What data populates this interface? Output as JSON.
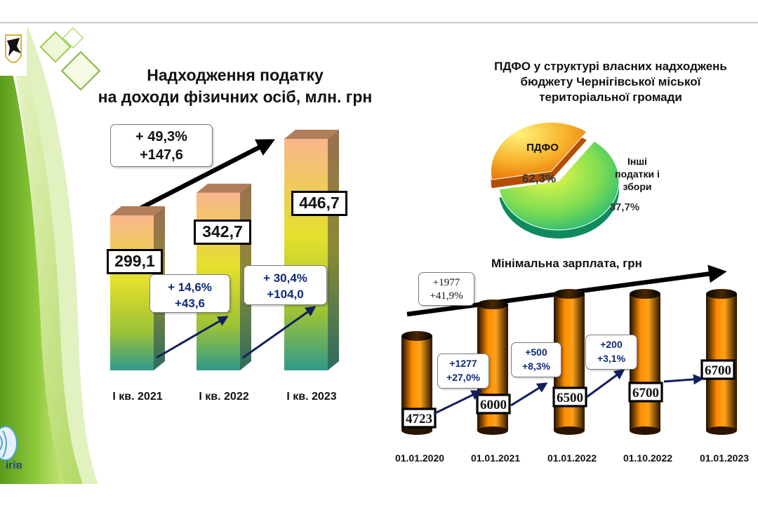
{
  "income_tax_chart": {
    "title_line1": "Надходження податку",
    "title_line2": "на доходи фізичних осіб, млн. грн",
    "total_growth": {
      "percent": "+ 49,3%",
      "amount": "+147,6"
    },
    "quarter_growth": [
      {
        "percent": "+ 14,6%",
        "amount": "+43,6"
      },
      {
        "percent": "+ 30,4%",
        "amount": "+104,0"
      }
    ],
    "value_labels": [
      "299,1",
      "342,7",
      "446,7"
    ]
  },
  "pie_chart": {
    "title_line1": "ПДФО у структурі власних надходжень",
    "title_line2": "бюджету Чернігівської міської",
    "title_line3": "територіальної громади",
    "slice_pdfo": {
      "label": "ПДФО",
      "percent": "62,3%"
    },
    "slice_other": {
      "label_line1": "Інші",
      "label_line2": "податки і",
      "label_line3": "збори",
      "percent": "37,7%"
    }
  },
  "min_wage_chart": {
    "title": "Мінімальна зарплата, грн",
    "total_growth": {
      "amount": "+1977",
      "percent": "+41,9%"
    },
    "step_growth": [
      {
        "amount": "+1277",
        "percent": "+27,0%"
      },
      {
        "amount": "+500",
        "percent": "+8,3%"
      },
      {
        "amount": "+200",
        "percent": "+3,1%"
      }
    ]
  },
  "chart_data": [
    {
      "type": "bar",
      "categories": [
        "І кв. 2021",
        "І кв. 2022",
        "І кв. 2023"
      ],
      "values": [
        299.1,
        342.7,
        446.7
      ],
      "title": "Надходження податку на доходи фізичних осіб, млн. грн",
      "ylim": [
        0,
        446.7
      ],
      "grid": false
    },
    {
      "type": "pie",
      "categories": [
        "ПДФО",
        "Інші податки і збори"
      ],
      "values": [
        62.3,
        37.7
      ],
      "title": "ПДФО у структурі власних надходжень бюджету Чернігівської міської територіальної громади"
    },
    {
      "type": "bar",
      "categories": [
        "01.01.2020",
        "01.01.2021",
        "01.01.2022",
        "01.10.2022",
        "01.01.2023"
      ],
      "values": [
        4723,
        6000,
        6500,
        6700,
        6700
      ],
      "title": "Мінімальна зарплата, грн",
      "grid": false
    }
  ],
  "colors": {
    "green_dark": "#5a9b1c",
    "green_light": "#b8de5a",
    "bar_top": "#f9b68c",
    "bar_mid": "#e4e02c",
    "bar_bottom": "#2f9a8c",
    "wage_bar_mid": "#ff8c00",
    "arrow_navy": "#12205e",
    "pie_green": "#27c26e",
    "pie_orange": "#f07d10"
  },
  "logo_text": {
    "city": "ігів"
  }
}
